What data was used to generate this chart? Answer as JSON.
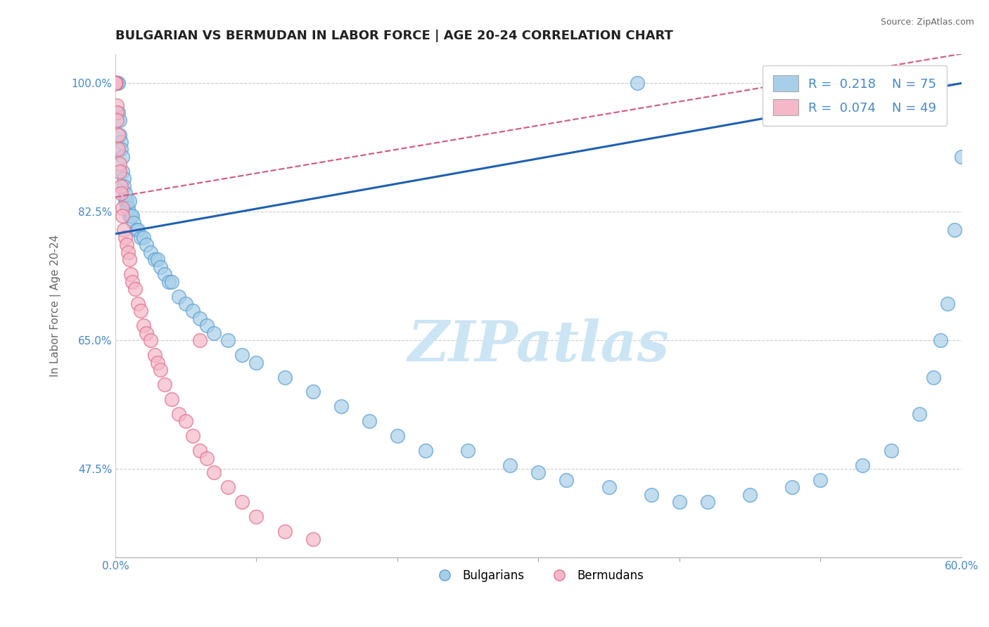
{
  "title": "BULGARIAN VS BERMUDAN IN LABOR FORCE | AGE 20-24 CORRELATION CHART",
  "source": "Source: ZipAtlas.com",
  "ylabel": "In Labor Force | Age 20-24",
  "x_min": 0.0,
  "x_max": 0.6,
  "y_min": 0.355,
  "y_max": 1.04,
  "grid_color": "#cccccc",
  "watermark": "ZIPatlas",
  "watermark_color": "#cce5f5",
  "legend_label1": "Bulgarians",
  "legend_label2": "Bermudans",
  "blue_color": "#a8cfe8",
  "blue_edge_color": "#5b9fd4",
  "pink_color": "#f5b8c8",
  "pink_edge_color": "#e07090",
  "trend_blue": "#2060b0",
  "trend_pink": "#d06080",
  "bg_color": "#ffffff",
  "title_color": "#222222",
  "title_fontsize": 13,
  "axis_label_color": "#666666",
  "tick_color": "#4488cc",
  "source_color": "#666666",
  "blue_scatter_x": [
    0.0,
    0.0,
    0.0,
    0.0,
    0.0,
    0.001,
    0.001,
    0.001,
    0.002,
    0.002,
    0.003,
    0.003,
    0.004,
    0.004,
    0.005,
    0.005,
    0.006,
    0.006,
    0.007,
    0.007,
    0.008,
    0.008,
    0.009,
    0.01,
    0.01,
    0.011,
    0.012,
    0.013,
    0.015,
    0.016,
    0.018,
    0.02,
    0.022,
    0.025,
    0.028,
    0.03,
    0.032,
    0.035,
    0.038,
    0.04,
    0.045,
    0.05,
    0.055,
    0.06,
    0.065,
    0.07,
    0.08,
    0.09,
    0.1,
    0.12,
    0.14,
    0.16,
    0.18,
    0.2,
    0.22,
    0.25,
    0.28,
    0.3,
    0.32,
    0.35,
    0.37,
    0.38,
    0.4,
    0.42,
    0.45,
    0.48,
    0.5,
    0.53,
    0.55,
    0.57,
    0.58,
    0.585,
    0.59,
    0.595,
    0.6
  ],
  "blue_scatter_y": [
    1.0,
    1.0,
    1.0,
    1.0,
    1.0,
    1.0,
    1.0,
    1.0,
    1.0,
    0.96,
    0.95,
    0.93,
    0.92,
    0.91,
    0.9,
    0.88,
    0.87,
    0.86,
    0.85,
    0.84,
    0.84,
    0.83,
    0.83,
    0.84,
    0.82,
    0.82,
    0.82,
    0.81,
    0.8,
    0.8,
    0.79,
    0.79,
    0.78,
    0.77,
    0.76,
    0.76,
    0.75,
    0.74,
    0.73,
    0.73,
    0.71,
    0.7,
    0.69,
    0.68,
    0.67,
    0.66,
    0.65,
    0.63,
    0.62,
    0.6,
    0.58,
    0.56,
    0.54,
    0.52,
    0.5,
    0.5,
    0.48,
    0.47,
    0.46,
    0.45,
    1.0,
    0.44,
    0.43,
    0.43,
    0.44,
    0.45,
    0.46,
    0.48,
    0.5,
    0.55,
    0.6,
    0.65,
    0.7,
    0.8,
    0.9
  ],
  "pink_scatter_x": [
    0.0,
    0.0,
    0.0,
    0.0,
    0.0,
    0.0,
    0.0,
    0.0,
    0.001,
    0.001,
    0.001,
    0.002,
    0.002,
    0.003,
    0.003,
    0.004,
    0.004,
    0.005,
    0.005,
    0.006,
    0.007,
    0.008,
    0.009,
    0.01,
    0.011,
    0.012,
    0.014,
    0.016,
    0.018,
    0.02,
    0.022,
    0.025,
    0.028,
    0.03,
    0.032,
    0.035,
    0.04,
    0.045,
    0.05,
    0.055,
    0.06,
    0.065,
    0.07,
    0.08,
    0.09,
    0.1,
    0.12,
    0.14,
    0.06
  ],
  "pink_scatter_y": [
    1.0,
    1.0,
    1.0,
    1.0,
    1.0,
    1.0,
    1.0,
    1.0,
    0.97,
    0.96,
    0.95,
    0.93,
    0.91,
    0.89,
    0.88,
    0.86,
    0.85,
    0.83,
    0.82,
    0.8,
    0.79,
    0.78,
    0.77,
    0.76,
    0.74,
    0.73,
    0.72,
    0.7,
    0.69,
    0.67,
    0.66,
    0.65,
    0.63,
    0.62,
    0.61,
    0.59,
    0.57,
    0.55,
    0.54,
    0.52,
    0.5,
    0.49,
    0.47,
    0.45,
    0.43,
    0.41,
    0.39,
    0.38,
    0.65
  ],
  "blue_trend_x0": 0.0,
  "blue_trend_y0": 0.795,
  "blue_trend_x1": 0.6,
  "blue_trend_y1": 1.0,
  "pink_trend_x0": 0.0,
  "pink_trend_y0": 0.845,
  "pink_trend_x1": 0.6,
  "pink_trend_y1": 1.04
}
